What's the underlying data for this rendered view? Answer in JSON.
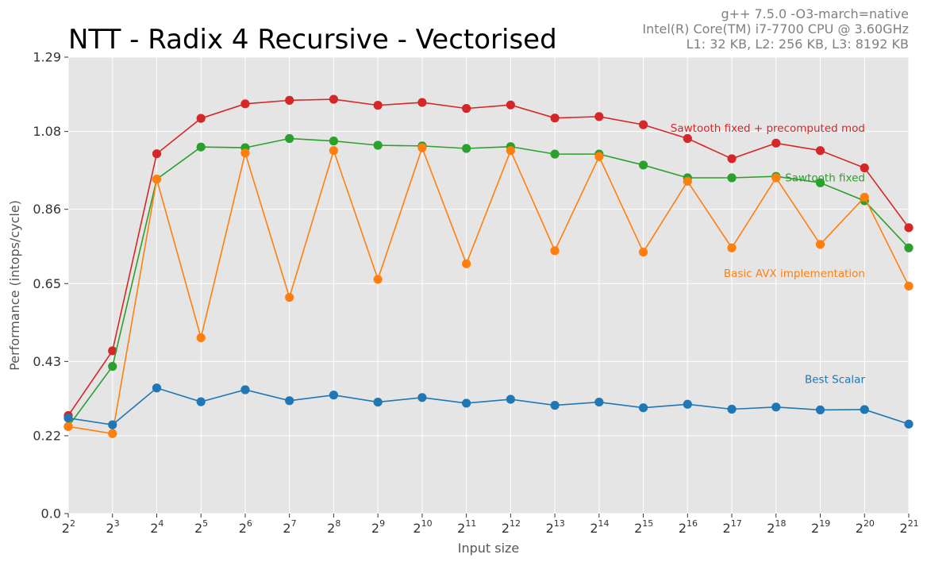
{
  "chart_data": {
    "type": "line",
    "title": "NTT - Radix 4 Recursive - Vectorised",
    "meta_lines": [
      "g++ 7.5.0 -O3-march=native",
      "Intel(R) Core(TM) i7-7700 CPU @ 3.60GHz",
      "L1: 32 KB, L2: 256 KB, L3: 8192 KB"
    ],
    "xlabel": "Input size",
    "ylabel": "Performance (intops/cycle)",
    "x": [
      2,
      3,
      4,
      5,
      6,
      7,
      8,
      9,
      10,
      11,
      12,
      13,
      14,
      15,
      16,
      17,
      18,
      19,
      20,
      21
    ],
    "x_tick_base": "2",
    "x_tick_exponents": [
      "2",
      "3",
      "4",
      "5",
      "6",
      "7",
      "8",
      "9",
      "10",
      "11",
      "12",
      "13",
      "14",
      "15",
      "16",
      "17",
      "18",
      "19",
      "20",
      "21"
    ],
    "xlim": [
      2,
      21
    ],
    "ylim": [
      0,
      1.29
    ],
    "y_ticks": [
      0.0,
      0.22,
      0.43,
      0.65,
      0.86,
      1.08,
      1.29
    ],
    "y_tick_labels": [
      "0.0",
      "0.22",
      "0.43",
      "0.65",
      "0.86",
      "1.08",
      "1.29"
    ],
    "grid": true,
    "background": "#e5e5e5",
    "legend": "inline labels at right",
    "series": [
      {
        "name": "Sawtooth fixed + precomputed mod",
        "color": "#d62728",
        "values": [
          0.277,
          0.46,
          1.017,
          1.117,
          1.158,
          1.168,
          1.171,
          1.154,
          1.162,
          1.145,
          1.155,
          1.118,
          1.122,
          1.099,
          1.06,
          1.003,
          1.047,
          1.026,
          0.977,
          0.808
        ]
      },
      {
        "name": "Sawtooth fixed",
        "color": "#2ca02c",
        "values": [
          0.246,
          0.416,
          0.945,
          1.036,
          1.034,
          1.06,
          1.053,
          1.041,
          1.039,
          1.032,
          1.037,
          1.016,
          1.016,
          0.985,
          0.949,
          0.949,
          0.953,
          0.935,
          0.884,
          0.751
        ]
      },
      {
        "name": "Basic AVX implementation",
        "color": "#ff7f0e",
        "values": [
          0.246,
          0.226,
          0.945,
          0.497,
          1.019,
          0.611,
          1.026,
          0.662,
          1.034,
          0.706,
          1.026,
          0.743,
          1.009,
          0.739,
          0.939,
          0.751,
          0.949,
          0.761,
          0.894,
          0.643
        ]
      },
      {
        "name": "Best Scalar",
        "color": "#1f77b4",
        "values": [
          0.27,
          0.251,
          0.355,
          0.316,
          0.35,
          0.319,
          0.335,
          0.315,
          0.328,
          0.312,
          0.323,
          0.306,
          0.315,
          0.299,
          0.309,
          0.295,
          0.301,
          0.293,
          0.294,
          0.253
        ]
      }
    ]
  }
}
